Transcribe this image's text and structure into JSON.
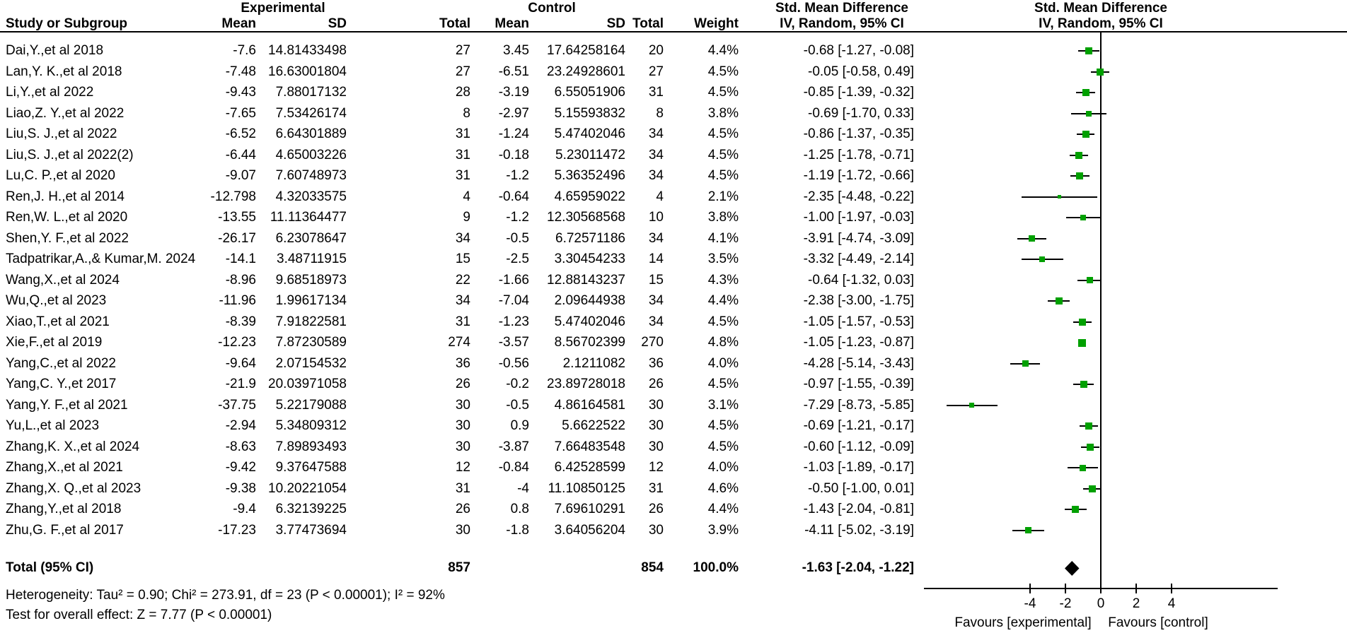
{
  "header": {
    "group_experimental": "Experimental",
    "group_control": "Control",
    "col_study": "Study or Subgroup",
    "col_mean": "Mean",
    "col_sd": "SD",
    "col_total": "Total",
    "col_weight": "Weight",
    "smd_label": "Std. Mean Difference",
    "method_label": "IV, Random, 95% CI"
  },
  "chart_data": {
    "type": "forest",
    "effect_measure": "Std. Mean Difference",
    "model": "IV, Random, 95% CI",
    "axis": {
      "ticks": [
        -4,
        -2,
        0,
        2,
        4
      ],
      "min": -10,
      "max": 10,
      "zero_line": 0
    },
    "favours_left": "Favours [experimental]",
    "favours_right": "Favours [control]",
    "marker_color": "#00A000",
    "studies": [
      {
        "name": "Dai,Y.,et al 2018",
        "mean_e": "-7.6",
        "sd_e": "14.81433498",
        "n_e": "27",
        "mean_c": "3.45",
        "sd_c": "17.64258164",
        "n_c": "20",
        "weight": "4.4%",
        "ci_text": "-0.68 [-1.27, -0.08]",
        "est": -0.68,
        "lo": -1.27,
        "hi": -0.08,
        "w": 4.4
      },
      {
        "name": "Lan,Y. K.,et al 2018",
        "mean_e": "-7.48",
        "sd_e": "16.63001804",
        "n_e": "27",
        "mean_c": "-6.51",
        "sd_c": "23.24928601",
        "n_c": "27",
        "weight": "4.5%",
        "ci_text": "-0.05 [-0.58, 0.49]",
        "est": -0.05,
        "lo": -0.58,
        "hi": 0.49,
        "w": 4.5
      },
      {
        "name": "Li,Y.,et al 2022",
        "mean_e": "-9.43",
        "sd_e": "7.88017132",
        "n_e": "28",
        "mean_c": "-3.19",
        "sd_c": "6.55051906",
        "n_c": "31",
        "weight": "4.5%",
        "ci_text": "-0.85 [-1.39, -0.32]",
        "est": -0.85,
        "lo": -1.39,
        "hi": -0.32,
        "w": 4.5
      },
      {
        "name": "Liao,Z. Y.,et al 2022",
        "mean_e": "-7.65",
        "sd_e": "7.53426174",
        "n_e": "8",
        "mean_c": "-2.97",
        "sd_c": "5.15593832",
        "n_c": "8",
        "weight": "3.8%",
        "ci_text": "-0.69 [-1.70, 0.33]",
        "est": -0.69,
        "lo": -1.7,
        "hi": 0.33,
        "w": 3.8
      },
      {
        "name": "Liu,S. J.,et al 2022",
        "mean_e": "-6.52",
        "sd_e": "6.64301889",
        "n_e": "31",
        "mean_c": "-1.24",
        "sd_c": "5.47402046",
        "n_c": "34",
        "weight": "4.5%",
        "ci_text": "-0.86 [-1.37, -0.35]",
        "est": -0.86,
        "lo": -1.37,
        "hi": -0.35,
        "w": 4.5
      },
      {
        "name": "Liu,S. J.,et al 2022(2)",
        "mean_e": "-6.44",
        "sd_e": "4.65003226",
        "n_e": "31",
        "mean_c": "-0.18",
        "sd_c": "5.23011472",
        "n_c": "34",
        "weight": "4.5%",
        "ci_text": "-1.25 [-1.78, -0.71]",
        "est": -1.25,
        "lo": -1.78,
        "hi": -0.71,
        "w": 4.5
      },
      {
        "name": "Lu,C. P.,et al 2020",
        "mean_e": "-9.07",
        "sd_e": "7.60748973",
        "n_e": "31",
        "mean_c": "-1.2",
        "sd_c": "5.36352496",
        "n_c": "34",
        "weight": "4.5%",
        "ci_text": "-1.19 [-1.72, -0.66]",
        "est": -1.19,
        "lo": -1.72,
        "hi": -0.66,
        "w": 4.5
      },
      {
        "name": "Ren,J. H.,et al 2014",
        "mean_e": "-12.798",
        "sd_e": "4.32033575",
        "n_e": "4",
        "mean_c": "-0.64",
        "sd_c": "4.65959022",
        "n_c": "4",
        "weight": "2.1%",
        "ci_text": "-2.35 [-4.48, -0.22]",
        "est": -2.35,
        "lo": -4.48,
        "hi": -0.22,
        "w": 2.1
      },
      {
        "name": "Ren,W. L.,et al 2020",
        "mean_e": "-13.55",
        "sd_e": "11.11364477",
        "n_e": "9",
        "mean_c": "-1.2",
        "sd_c": "12.30568568",
        "n_c": "10",
        "weight": "3.8%",
        "ci_text": "-1.00 [-1.97, -0.03]",
        "est": -1.0,
        "lo": -1.97,
        "hi": -0.03,
        "w": 3.8
      },
      {
        "name": "Shen,Y. F.,et al 2022",
        "mean_e": "-26.17",
        "sd_e": "6.23078647",
        "n_e": "34",
        "mean_c": "-0.5",
        "sd_c": "6.72571186",
        "n_c": "34",
        "weight": "4.1%",
        "ci_text": "-3.91 [-4.74, -3.09]",
        "est": -3.91,
        "lo": -4.74,
        "hi": -3.09,
        "w": 4.1
      },
      {
        "name": "Tadpatrikar,A.,& Kumar,M. 2024",
        "mean_e": "-14.1",
        "sd_e": "3.48711915",
        "n_e": "15",
        "mean_c": "-2.5",
        "sd_c": "3.30454233",
        "n_c": "14",
        "weight": "3.5%",
        "ci_text": "-3.32 [-4.49, -2.14]",
        "est": -3.32,
        "lo": -4.49,
        "hi": -2.14,
        "w": 3.5
      },
      {
        "name": "Wang,X.,et al 2024",
        "mean_e": "-8.96",
        "sd_e": "9.68518973",
        "n_e": "22",
        "mean_c": "-1.66",
        "sd_c": "12.88143237",
        "n_c": "15",
        "weight": "4.3%",
        "ci_text": "-0.64 [-1.32, 0.03]",
        "est": -0.64,
        "lo": -1.32,
        "hi": 0.03,
        "w": 4.3
      },
      {
        "name": "Wu,Q.,et al 2023",
        "mean_e": "-11.96",
        "sd_e": "1.99617134",
        "n_e": "34",
        "mean_c": "-7.04",
        "sd_c": "2.09644938",
        "n_c": "34",
        "weight": "4.4%",
        "ci_text": "-2.38 [-3.00, -1.75]",
        "est": -2.38,
        "lo": -3.0,
        "hi": -1.75,
        "w": 4.4
      },
      {
        "name": "Xiao,T.,et al 2021",
        "mean_e": "-8.39",
        "sd_e": "7.91822581",
        "n_e": "31",
        "mean_c": "-1.23",
        "sd_c": "5.47402046",
        "n_c": "34",
        "weight": "4.5%",
        "ci_text": "-1.05 [-1.57, -0.53]",
        "est": -1.05,
        "lo": -1.57,
        "hi": -0.53,
        "w": 4.5
      },
      {
        "name": "Xie,F.,et al 2019",
        "mean_e": "-12.23",
        "sd_e": "7.87230589",
        "n_e": "274",
        "mean_c": "-3.57",
        "sd_c": "8.56702399",
        "n_c": "270",
        "weight": "4.8%",
        "ci_text": "-1.05 [-1.23, -0.87]",
        "est": -1.05,
        "lo": -1.23,
        "hi": -0.87,
        "w": 4.8
      },
      {
        "name": "Yang,C.,et al 2022",
        "mean_e": "-9.64",
        "sd_e": "2.07154532",
        "n_e": "36",
        "mean_c": "-0.56",
        "sd_c": "2.1211082",
        "n_c": "36",
        "weight": "4.0%",
        "ci_text": "-4.28 [-5.14, -3.43]",
        "est": -4.28,
        "lo": -5.14,
        "hi": -3.43,
        "w": 4.0
      },
      {
        "name": "Yang,C. Y.,et  2017",
        "mean_e": "-21.9",
        "sd_e": "20.03971058",
        "n_e": "26",
        "mean_c": "-0.2",
        "sd_c": "23.89728018",
        "n_c": "26",
        "weight": "4.5%",
        "ci_text": "-0.97 [-1.55, -0.39]",
        "est": -0.97,
        "lo": -1.55,
        "hi": -0.39,
        "w": 4.5
      },
      {
        "name": "Yang,Y. F.,et al 2021",
        "mean_e": "-37.75",
        "sd_e": "5.22179088",
        "n_e": "30",
        "mean_c": "-0.5",
        "sd_c": "4.86164581",
        "n_c": "30",
        "weight": "3.1%",
        "ci_text": "-7.29 [-8.73, -5.85]",
        "est": -7.29,
        "lo": -8.73,
        "hi": -5.85,
        "w": 3.1
      },
      {
        "name": "Yu,L.,et al 2023",
        "mean_e": "-2.94",
        "sd_e": "5.34809312",
        "n_e": "30",
        "mean_c": "0.9",
        "sd_c": "5.6622522",
        "n_c": "30",
        "weight": "4.5%",
        "ci_text": "-0.69 [-1.21, -0.17]",
        "est": -0.69,
        "lo": -1.21,
        "hi": -0.17,
        "w": 4.5
      },
      {
        "name": "Zhang,K. X.,et al 2024",
        "mean_e": "-8.63",
        "sd_e": "7.89893493",
        "n_e": "30",
        "mean_c": "-3.87",
        "sd_c": "7.66483548",
        "n_c": "30",
        "weight": "4.5%",
        "ci_text": "-0.60 [-1.12, -0.09]",
        "est": -0.6,
        "lo": -1.12,
        "hi": -0.09,
        "w": 4.5
      },
      {
        "name": "Zhang,X.,et al 2021",
        "mean_e": "-9.42",
        "sd_e": "9.37647588",
        "n_e": "12",
        "mean_c": "-0.84",
        "sd_c": "6.42528599",
        "n_c": "12",
        "weight": "4.0%",
        "ci_text": "-1.03 [-1.89, -0.17]",
        "est": -1.03,
        "lo": -1.89,
        "hi": -0.17,
        "w": 4.0
      },
      {
        "name": "Zhang,X. Q.,et al 2023",
        "mean_e": "-9.38",
        "sd_e": "10.20221054",
        "n_e": "31",
        "mean_c": "-4",
        "sd_c": "11.10850125",
        "n_c": "31",
        "weight": "4.6%",
        "ci_text": "-0.50 [-1.00, 0.01]",
        "est": -0.5,
        "lo": -1.0,
        "hi": 0.01,
        "w": 4.6
      },
      {
        "name": "Zhang,Y.,et al 2018",
        "mean_e": "-9.4",
        "sd_e": "6.32139225",
        "n_e": "26",
        "mean_c": "0.8",
        "sd_c": "7.69610291",
        "n_c": "26",
        "weight": "4.4%",
        "ci_text": "-1.43 [-2.04, -0.81]",
        "est": -1.43,
        "lo": -2.04,
        "hi": -0.81,
        "w": 4.4
      },
      {
        "name": "Zhu,G. F.,et al 2017",
        "mean_e": "-17.23",
        "sd_e": "3.77473694",
        "n_e": "30",
        "mean_c": "-1.8",
        "sd_c": "3.64056204",
        "n_c": "30",
        "weight": "3.9%",
        "ci_text": "-4.11 [-5.02, -3.19]",
        "est": -4.11,
        "lo": -5.02,
        "hi": -3.19,
        "w": 3.9
      }
    ],
    "total": {
      "label": "Total (95% CI)",
      "n_e": "857",
      "n_c": "854",
      "weight": "100.0%",
      "ci_text": "-1.63 [-2.04, -1.22]",
      "est": -1.63,
      "lo": -2.04,
      "hi": -1.22
    },
    "heterogeneity": "Heterogeneity: Tau² = 0.90; Chi² = 273.91, df = 23 (P < 0.00001); I² = 92%",
    "overall_effect": "Test for overall effect: Z = 7.77 (P < 0.00001)"
  }
}
